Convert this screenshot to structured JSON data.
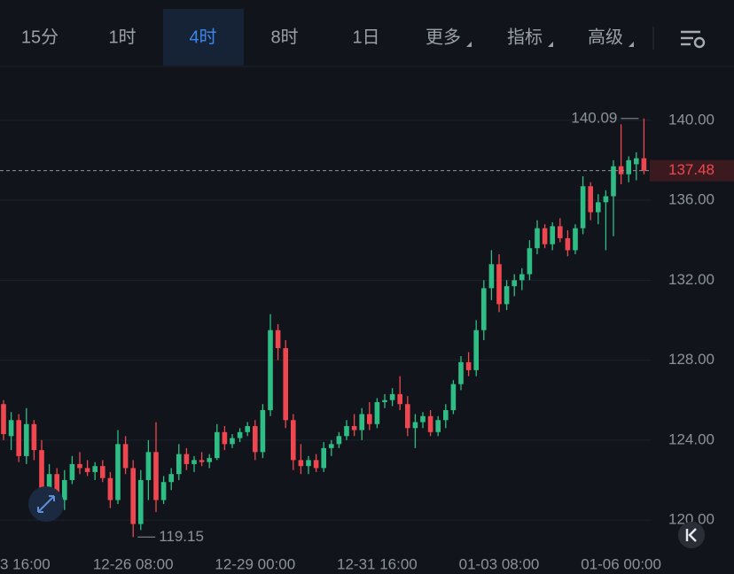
{
  "toolbar": {
    "tabs": [
      "15分",
      "1时",
      "4时",
      "8时",
      "1日",
      "更多",
      "指标",
      "高级"
    ],
    "active": 2
  },
  "chart_data": {
    "type": "candlestick",
    "categories": [
      null,
      "3 16:00",
      null,
      null,
      null,
      null,
      null,
      null,
      null,
      null,
      null,
      null,
      null,
      null,
      null,
      null,
      null,
      "12-26 08:00",
      null,
      null,
      null,
      null,
      null,
      null,
      null,
      null,
      null,
      null,
      null,
      null,
      null,
      null,
      null,
      "12-29 00:00",
      null,
      null,
      null,
      null,
      null,
      null,
      null,
      null,
      null,
      null,
      null,
      null,
      null,
      null,
      null,
      "12-31 16:00",
      null,
      null,
      null,
      null,
      null,
      null,
      null,
      null,
      null,
      null,
      null,
      null,
      null,
      null,
      null,
      "01-03 08:00",
      null,
      null,
      null,
      null,
      null,
      null,
      null,
      null,
      null,
      null,
      null,
      null,
      null,
      null,
      null,
      "01-06 00:00",
      null,
      null,
      null
    ],
    "series": [
      {
        "open": [
          125.8,
          124.2,
          125.0,
          123.2,
          124.8,
          123.5,
          121.5,
          122.3,
          121.0,
          122.0,
          122.8,
          122.6,
          122.4,
          122.7,
          122.1,
          121.0,
          123.8,
          122.6,
          119.8,
          122.0,
          123.4,
          121.0,
          121.9,
          122.3,
          123.3,
          122.8,
          123.0,
          122.9,
          123.1,
          124.4,
          123.8,
          124.1,
          124.4,
          124.7,
          123.4,
          125.5,
          129.5,
          128.6,
          125.0,
          123.0,
          122.7,
          123.0,
          122.6,
          123.6,
          123.8,
          124.2,
          124.7,
          124.5,
          125.3,
          124.8,
          125.9,
          126.0,
          126.3,
          125.8,
          124.6,
          124.9,
          125.2,
          124.4,
          125.0,
          125.5,
          126.8,
          127.9,
          127.5,
          129.5,
          131.6,
          132.8,
          130.8,
          131.7,
          132.0,
          132.3,
          133.6,
          134.6,
          133.8,
          134.7,
          134.1,
          133.5,
          134.6,
          136.7,
          135.4,
          135.9,
          136.2,
          137.7,
          137.3,
          137.8,
          138.1
        ],
        "high": [
          126.0,
          125.4,
          125.3,
          125.6,
          125.0,
          124.0,
          122.8,
          122.6,
          122.5,
          123.2,
          123.4,
          123.0,
          122.9,
          123.0,
          122.4,
          124.5,
          124.2,
          123.0,
          122.5,
          124.0,
          124.9,
          122.2,
          122.6,
          123.8,
          123.6,
          123.2,
          123.4,
          123.3,
          124.8,
          124.7,
          124.3,
          124.6,
          124.9,
          125.0,
          125.8,
          130.3,
          129.8,
          129.0,
          125.3,
          123.8,
          123.2,
          123.3,
          123.9,
          124.0,
          124.4,
          125.0,
          125.3,
          125.6,
          125.9,
          126.1,
          126.3,
          126.6,
          127.2,
          126.2,
          125.3,
          125.4,
          125.5,
          125.2,
          125.8,
          127.0,
          128.2,
          128.4,
          130.0,
          132.0,
          133.5,
          133.3,
          132.0,
          132.3,
          132.6,
          134.0,
          135.0,
          134.8,
          134.9,
          135.1,
          134.5,
          134.8,
          137.2,
          136.9,
          136.3,
          136.5,
          138.0,
          139.8,
          138.2,
          138.4,
          140.09
        ],
        "low": [
          124.0,
          123.5,
          122.9,
          122.8,
          123.0,
          121.0,
          120.8,
          120.7,
          120.5,
          121.8,
          122.3,
          122.2,
          122.0,
          121.9,
          120.6,
          120.8,
          122.3,
          119.15,
          119.5,
          121.0,
          120.4,
          120.8,
          121.5,
          122.0,
          122.5,
          122.4,
          122.7,
          122.6,
          123.0,
          123.5,
          123.6,
          123.9,
          124.2,
          123.0,
          123.1,
          125.2,
          128.0,
          124.6,
          122.5,
          122.3,
          122.3,
          122.4,
          122.4,
          123.2,
          123.6,
          124.0,
          124.2,
          124.0,
          124.5,
          124.6,
          125.6,
          125.7,
          125.5,
          124.2,
          123.6,
          124.6,
          124.2,
          124.2,
          124.6,
          125.3,
          126.5,
          127.2,
          127.2,
          129.0,
          131.0,
          130.4,
          130.5,
          131.2,
          131.5,
          132.0,
          133.3,
          133.6,
          133.5,
          133.9,
          133.2,
          133.3,
          134.3,
          135.0,
          134.8,
          133.5,
          134.2,
          136.8,
          136.9,
          137.0,
          137.3
        ],
        "close": [
          124.3,
          125.0,
          123.2,
          124.8,
          123.5,
          121.5,
          122.3,
          121.0,
          122.0,
          122.8,
          122.6,
          122.4,
          122.7,
          122.1,
          121.0,
          123.8,
          122.6,
          119.8,
          122.0,
          123.4,
          121.0,
          121.9,
          122.3,
          123.3,
          122.8,
          123.0,
          122.9,
          123.1,
          124.4,
          123.8,
          124.1,
          124.4,
          124.7,
          123.4,
          125.5,
          129.5,
          128.6,
          125.0,
          123.0,
          122.7,
          123.0,
          122.6,
          123.6,
          123.8,
          124.2,
          124.7,
          124.5,
          125.3,
          124.8,
          125.9,
          126.0,
          126.3,
          125.8,
          124.6,
          124.9,
          125.2,
          124.4,
          125.0,
          125.5,
          126.8,
          127.9,
          127.5,
          129.5,
          131.6,
          132.8,
          130.8,
          131.7,
          132.0,
          132.3,
          133.6,
          134.6,
          133.8,
          134.7,
          134.1,
          133.5,
          134.6,
          136.7,
          135.4,
          135.9,
          136.2,
          137.7,
          137.3,
          138.0,
          138.1,
          137.48
        ]
      }
    ],
    "up_color": "#2ebd85",
    "down_color": "#f0464f",
    "ylim": [
      118.32,
      142.65
    ],
    "yticks": [
      {
        "value": 120,
        "label": "120.00"
      },
      {
        "value": 124,
        "label": "124.00"
      },
      {
        "value": 128,
        "label": "128.00"
      },
      {
        "value": 132,
        "label": "132.00"
      },
      {
        "value": 136,
        "label": "136.00"
      },
      {
        "value": 140,
        "label": "140.00"
      }
    ],
    "grid": true
  }
}
